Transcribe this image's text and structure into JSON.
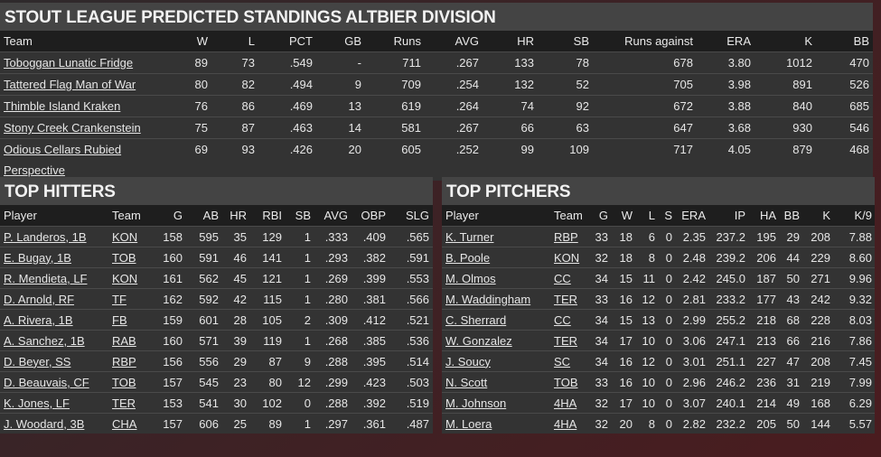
{
  "standings": {
    "title": "STOUT LEAGUE PREDICTED STANDINGS ALTBIER DIVISION",
    "columns": [
      "Team",
      "W",
      "L",
      "PCT",
      "GB",
      "Runs",
      "AVG",
      "HR",
      "SB",
      "Runs against",
      "ERA",
      "K",
      "BB"
    ],
    "rows": [
      [
        "Toboggan Lunatic Fridge",
        "89",
        "73",
        ".549",
        "-",
        "711",
        ".267",
        "133",
        "78",
        "678",
        "3.80",
        "1012",
        "470"
      ],
      [
        "Tattered Flag Man of War",
        "80",
        "82",
        ".494",
        "9",
        "709",
        ".254",
        "132",
        "52",
        "705",
        "3.98",
        "891",
        "526"
      ],
      [
        "Thimble Island Kraken",
        "76",
        "86",
        ".469",
        "13",
        "619",
        ".264",
        "74",
        "92",
        "672",
        "3.88",
        "840",
        "685"
      ],
      [
        "Stony Creek Crankenstein",
        "75",
        "87",
        ".463",
        "14",
        "581",
        ".267",
        "66",
        "63",
        "647",
        "3.68",
        "930",
        "546"
      ],
      [
        "Odious Cellars Rubied Perspective",
        "69",
        "93",
        ".426",
        "20",
        "605",
        ".252",
        "99",
        "109",
        "717",
        "4.05",
        "879",
        "468"
      ]
    ]
  },
  "hitters": {
    "title": "TOP HITTERS",
    "columns": [
      "Player",
      "Team",
      "G",
      "AB",
      "HR",
      "RBI",
      "SB",
      "AVG",
      "OBP",
      "SLG"
    ],
    "rows": [
      [
        "P. Landeros, 1B",
        "KON",
        "158",
        "595",
        "35",
        "129",
        "1",
        ".333",
        ".409",
        ".565"
      ],
      [
        "E. Bugay, 1B",
        "TOB",
        "160",
        "591",
        "46",
        "141",
        "1",
        ".293",
        ".382",
        ".591"
      ],
      [
        "R. Mendieta, LF",
        "KON",
        "161",
        "562",
        "45",
        "121",
        "1",
        ".269",
        ".399",
        ".553"
      ],
      [
        "D. Arnold, RF",
        "TF",
        "162",
        "592",
        "42",
        "115",
        "1",
        ".280",
        ".381",
        ".566"
      ],
      [
        "A. Rivera, 1B",
        "FB",
        "159",
        "601",
        "28",
        "105",
        "2",
        ".309",
        ".412",
        ".521"
      ],
      [
        "A. Sanchez, 1B",
        "RAB",
        "160",
        "571",
        "39",
        "119",
        "1",
        ".268",
        ".385",
        ".536"
      ],
      [
        "D. Beyer, SS",
        "RBP",
        "156",
        "556",
        "29",
        "87",
        "9",
        ".288",
        ".395",
        ".514"
      ],
      [
        "D. Beauvais, CF",
        "TOB",
        "157",
        "545",
        "23",
        "80",
        "12",
        ".299",
        ".423",
        ".503"
      ],
      [
        "K. Jones, LF",
        "TER",
        "153",
        "541",
        "30",
        "102",
        "0",
        ".288",
        ".392",
        ".519"
      ],
      [
        "J. Woodard, 3B",
        "CHA",
        "157",
        "606",
        "25",
        "89",
        "1",
        ".297",
        ".361",
        ".487"
      ]
    ]
  },
  "pitchers": {
    "title": "TOP PITCHERS",
    "columns": [
      "Player",
      "Team",
      "G",
      "W",
      "L",
      "S",
      "ERA",
      "IP",
      "HA",
      "BB",
      "K",
      "K/9"
    ],
    "rows": [
      [
        "K. Turner",
        "RBP",
        "33",
        "18",
        "6",
        "0",
        "2.35",
        "237.2",
        "195",
        "29",
        "208",
        "7.88"
      ],
      [
        "B. Poole",
        "KON",
        "32",
        "18",
        "8",
        "0",
        "2.48",
        "239.2",
        "206",
        "44",
        "229",
        "8.60"
      ],
      [
        "M. Olmos",
        "CC",
        "34",
        "15",
        "11",
        "0",
        "2.42",
        "245.0",
        "187",
        "50",
        "271",
        "9.96"
      ],
      [
        "M. Waddingham",
        "TER",
        "33",
        "16",
        "12",
        "0",
        "2.81",
        "233.2",
        "177",
        "43",
        "242",
        "9.32"
      ],
      [
        "C. Sherrard",
        "CC",
        "34",
        "15",
        "13",
        "0",
        "2.99",
        "255.2",
        "218",
        "68",
        "228",
        "8.03"
      ],
      [
        "W. Gonzalez",
        "TER",
        "34",
        "17",
        "10",
        "0",
        "3.06",
        "247.1",
        "213",
        "66",
        "216",
        "7.86"
      ],
      [
        "J. Soucy",
        "SC",
        "34",
        "16",
        "12",
        "0",
        "3.01",
        "251.1",
        "227",
        "47",
        "208",
        "7.45"
      ],
      [
        "N. Scott",
        "TOB",
        "33",
        "16",
        "10",
        "0",
        "2.96",
        "246.2",
        "236",
        "31",
        "219",
        "7.99"
      ],
      [
        "M. Johnson",
        "4HA",
        "32",
        "17",
        "10",
        "0",
        "3.07",
        "240.1",
        "214",
        "49",
        "168",
        "6.29"
      ],
      [
        "M. Loera",
        "4HA",
        "32",
        "20",
        "8",
        "0",
        "2.82",
        "232.2",
        "205",
        "50",
        "144",
        "5.57"
      ]
    ]
  }
}
